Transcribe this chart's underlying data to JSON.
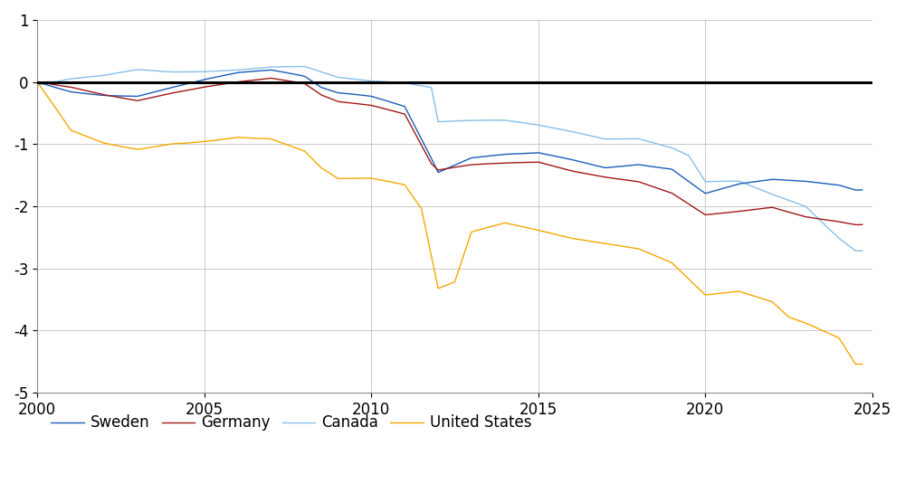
{
  "ylim": [
    -5,
    1
  ],
  "xlim": [
    2000,
    2025
  ],
  "yticks": [
    -5,
    -4,
    -3,
    -2,
    -1,
    0,
    1
  ],
  "xticks": [
    2000,
    2005,
    2010,
    2015,
    2020,
    2025
  ],
  "colors": {
    "Sweden": "#1a5eb8",
    "Germany": "#a01818",
    "Canada": "#87bfeb",
    "United_States": "#f5a800"
  },
  "legend_labels": [
    "Sweden",
    "Germany",
    "Canada",
    "United States"
  ],
  "background_color": "#ffffff",
  "zero_line_color": "#000000",
  "grid_color": "#c0c0c0",
  "linewidth": 1.0
}
